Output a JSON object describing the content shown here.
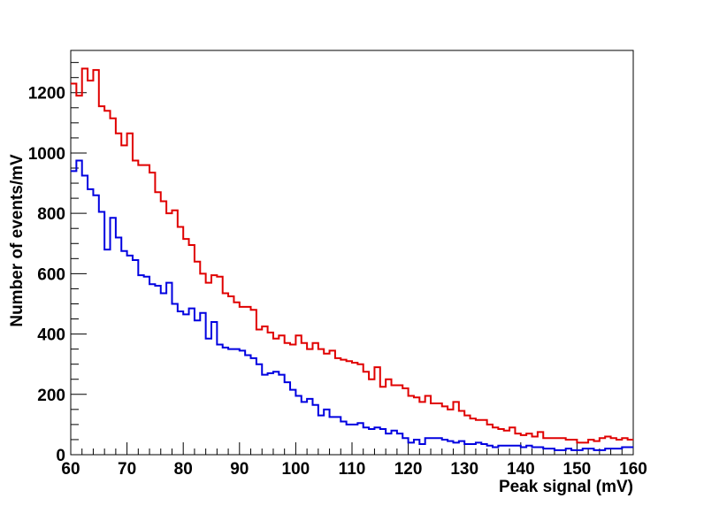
{
  "chart_data": {
    "type": "line",
    "xlabel": "Peak signal (mV)",
    "ylabel": "Number of events/mV",
    "xlim": [
      60,
      160
    ],
    "ylim": [
      0,
      1340
    ],
    "x_ticks": [
      "60",
      "70",
      "80",
      "90",
      "100",
      "110",
      "120",
      "130",
      "140",
      "150",
      "160"
    ],
    "y_ticks": [
      "0",
      "200",
      "400",
      "600",
      "800",
      "1000",
      "1200"
    ],
    "grid": false,
    "legend": "none",
    "bin_width": 1,
    "x": [
      60,
      61,
      62,
      63,
      64,
      65,
      66,
      67,
      68,
      69,
      70,
      71,
      72,
      73,
      74,
      75,
      76,
      77,
      78,
      79,
      80,
      81,
      82,
      83,
      84,
      85,
      86,
      87,
      88,
      89,
      90,
      91,
      92,
      93,
      94,
      95,
      96,
      97,
      98,
      99,
      100,
      101,
      102,
      103,
      104,
      105,
      106,
      107,
      108,
      109,
      110,
      111,
      112,
      113,
      114,
      115,
      116,
      117,
      118,
      119,
      120,
      121,
      122,
      123,
      124,
      125,
      126,
      127,
      128,
      129,
      130,
      131,
      132,
      133,
      134,
      135,
      136,
      137,
      138,
      139,
      140,
      141,
      142,
      143,
      144,
      145,
      146,
      147,
      148,
      149,
      150,
      151,
      152,
      153,
      154,
      155,
      156,
      157,
      158,
      159
    ],
    "series": [
      {
        "color": "#e00000",
        "values": [
          1230,
          1190,
          1280,
          1240,
          1275,
          1155,
          1140,
          1115,
          1065,
          1025,
          1065,
          975,
          960,
          960,
          935,
          870,
          840,
          800,
          810,
          755,
          715,
          695,
          640,
          600,
          570,
          595,
          590,
          535,
          525,
          505,
          490,
          490,
          480,
          415,
          425,
          405,
          385,
          395,
          370,
          365,
          395,
          370,
          350,
          370,
          350,
          335,
          345,
          320,
          315,
          310,
          305,
          300,
          275,
          250,
          290,
          225,
          250,
          230,
          230,
          220,
          195,
          190,
          175,
          195,
          170,
          170,
          160,
          150,
          175,
          145,
          130,
          120,
          115,
          115,
          100,
          90,
          85,
          80,
          90,
          70,
          65,
          70,
          60,
          75,
          55,
          55,
          55,
          55,
          50,
          50,
          40,
          40,
          50,
          45,
          55,
          60,
          55,
          50,
          55,
          50
        ]
      },
      {
        "color": "#0000e0",
        "values": [
          940,
          975,
          925,
          880,
          860,
          805,
          680,
          785,
          720,
          675,
          660,
          645,
          595,
          590,
          565,
          560,
          535,
          570,
          500,
          475,
          465,
          485,
          445,
          470,
          385,
          440,
          365,
          355,
          350,
          350,
          345,
          330,
          320,
          300,
          265,
          270,
          275,
          265,
          240,
          215,
          195,
          175,
          185,
          165,
          130,
          150,
          125,
          125,
          110,
          100,
          100,
          105,
          90,
          85,
          90,
          85,
          70,
          80,
          70,
          55,
          40,
          50,
          35,
          55,
          55,
          55,
          50,
          45,
          40,
          45,
          35,
          35,
          40,
          35,
          30,
          25,
          30,
          30,
          30,
          30,
          25,
          30,
          25,
          25,
          20,
          20,
          15,
          15,
          20,
          15,
          15,
          20,
          20,
          15,
          15,
          20,
          20,
          20,
          25,
          25
        ]
      }
    ]
  }
}
